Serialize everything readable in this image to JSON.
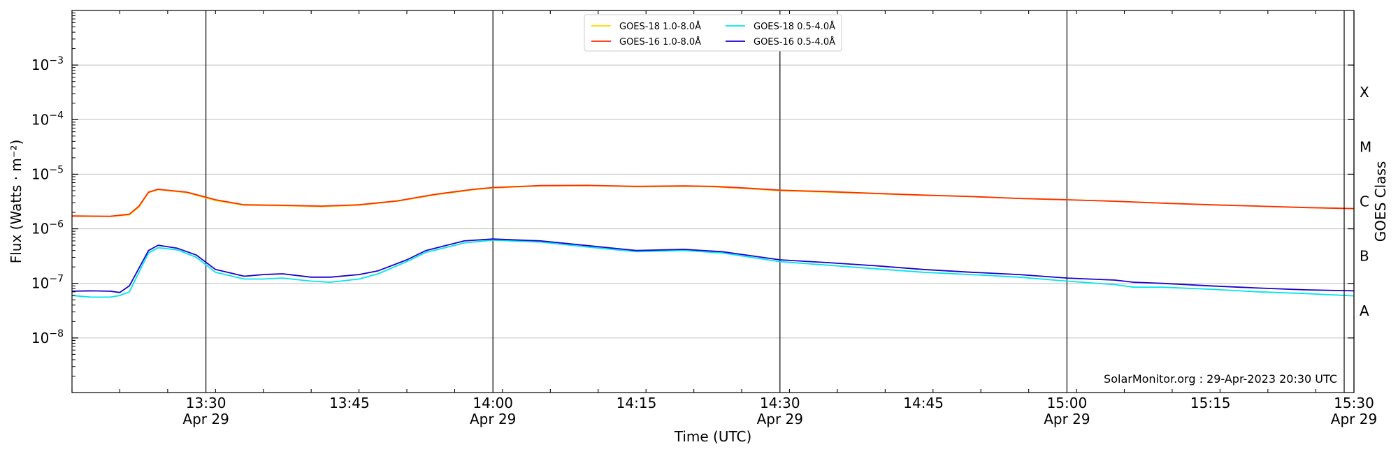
{
  "chart_data": {
    "type": "line",
    "xlabel": "Time (UTC)",
    "ylabel": "Flux (Watts · m⁻²)",
    "ylabel_right": "GOES Class",
    "y_scale": "log",
    "ylim": [
      1e-09,
      0.01
    ],
    "xlim": [
      "13:16",
      "15:30"
    ],
    "x_ticks": [
      {
        "time": "13:30",
        "label": "13:30",
        "date": "Apr 29"
      },
      {
        "time": "13:45",
        "label": "13:45",
        "date": ""
      },
      {
        "time": "14:00",
        "label": "14:00",
        "date": "Apr 29"
      },
      {
        "time": "14:15",
        "label": "14:15",
        "date": ""
      },
      {
        "time": "14:30",
        "label": "14:30",
        "date": "Apr 29"
      },
      {
        "time": "14:45",
        "label": "14:45",
        "date": ""
      },
      {
        "time": "15:00",
        "label": "15:00",
        "date": "Apr 29"
      },
      {
        "time": "15:15",
        "label": "15:15",
        "date": ""
      },
      {
        "time": "15:30",
        "label": "15:30",
        "date": "Apr 29"
      }
    ],
    "vertical_lines": [
      "13:30",
      "14:00",
      "14:30",
      "15:00",
      "15:30"
    ],
    "y_ticks": [
      {
        "value": 1e-08,
        "mantissa": "10",
        "exponent": "−8"
      },
      {
        "value": 1e-07,
        "mantissa": "10",
        "exponent": "−7"
      },
      {
        "value": 1e-06,
        "mantissa": "10",
        "exponent": "−6"
      },
      {
        "value": 1e-05,
        "mantissa": "10",
        "exponent": "−5"
      },
      {
        "value": 0.0001,
        "mantissa": "10",
        "exponent": "−4"
      },
      {
        "value": 0.001,
        "mantissa": "10",
        "exponent": "−3"
      }
    ],
    "goes_classes": [
      {
        "label": "A",
        "value": 3.16e-08
      },
      {
        "label": "B",
        "value": 3.16e-07
      },
      {
        "label": "C",
        "value": 3.16e-06
      },
      {
        "label": "M",
        "value": 3.16e-05
      },
      {
        "label": "X",
        "value": 0.000316
      }
    ],
    "grid": "horizontal",
    "legend_position": "top-center",
    "credit": "SolarMonitor.org : 29-Apr-2023 20:30 UTC",
    "series": [
      {
        "name": "GOES-18 1.0-8.0Å",
        "color": "#ffd700",
        "points": [
          [
            "13:16",
            1.7e-06
          ],
          [
            "13:20",
            1.68e-06
          ],
          [
            "13:22",
            1.8e-06
          ],
          [
            "13:23",
            2.5e-06
          ],
          [
            "13:24",
            4.6e-06
          ],
          [
            "13:25",
            5.2e-06
          ],
          [
            "13:28",
            4.6e-06
          ],
          [
            "13:30",
            3.7e-06
          ],
          [
            "13:31",
            3.3e-06
          ],
          [
            "13:34",
            2.7e-06
          ],
          [
            "13:38",
            2.65e-06
          ],
          [
            "13:42",
            2.55e-06
          ],
          [
            "13:46",
            2.7e-06
          ],
          [
            "13:50",
            3.2e-06
          ],
          [
            "13:54",
            4.2e-06
          ],
          [
            "13:58",
            5.2e-06
          ],
          [
            "14:00",
            5.6e-06
          ],
          [
            "14:05",
            6.1e-06
          ],
          [
            "14:10",
            6.15e-06
          ],
          [
            "14:15",
            5.9e-06
          ],
          [
            "14:20",
            6e-06
          ],
          [
            "14:23",
            5.9e-06
          ],
          [
            "14:27",
            5.4e-06
          ],
          [
            "14:30",
            5e-06
          ],
          [
            "14:35",
            4.7e-06
          ],
          [
            "14:40",
            4.4e-06
          ],
          [
            "14:45",
            4.1e-06
          ],
          [
            "14:50",
            3.9e-06
          ],
          [
            "14:55",
            3.6e-06
          ],
          [
            "15:00",
            3.4e-06
          ],
          [
            "15:05",
            3.2e-06
          ],
          [
            "15:10",
            2.95e-06
          ],
          [
            "15:15",
            2.75e-06
          ],
          [
            "15:20",
            2.6e-06
          ],
          [
            "15:25",
            2.45e-06
          ],
          [
            "15:30",
            2.35e-06
          ]
        ]
      },
      {
        "name": "GOES-18 0.5-4.0Å",
        "color": "#00e5ee",
        "points": [
          [
            "13:16",
            6e-08
          ],
          [
            "13:18",
            5.6e-08
          ],
          [
            "13:20",
            5.6e-08
          ],
          [
            "13:21",
            6e-08
          ],
          [
            "13:22",
            7e-08
          ],
          [
            "13:23",
            1.6e-07
          ],
          [
            "13:24",
            3.6e-07
          ],
          [
            "13:25",
            4.5e-07
          ],
          [
            "13:27",
            4.1e-07
          ],
          [
            "13:29",
            3e-07
          ],
          [
            "13:31",
            1.6e-07
          ],
          [
            "13:34",
            1.2e-07
          ],
          [
            "13:36",
            1.2e-07
          ],
          [
            "13:38",
            1.25e-07
          ],
          [
            "13:41",
            1.1e-07
          ],
          [
            "13:43",
            1.05e-07
          ],
          [
            "13:46",
            1.2e-07
          ],
          [
            "13:48",
            1.5e-07
          ],
          [
            "13:51",
            2.5e-07
          ],
          [
            "13:53",
            3.7e-07
          ],
          [
            "13:57",
            5.5e-07
          ],
          [
            "14:00",
            6.2e-07
          ],
          [
            "14:05",
            5.7e-07
          ],
          [
            "14:10",
            4.6e-07
          ],
          [
            "14:15",
            3.8e-07
          ],
          [
            "14:20",
            4e-07
          ],
          [
            "14:24",
            3.6e-07
          ],
          [
            "14:30",
            2.5e-07
          ],
          [
            "14:35",
            2.15e-07
          ],
          [
            "14:40",
            1.85e-07
          ],
          [
            "14:45",
            1.6e-07
          ],
          [
            "14:50",
            1.45e-07
          ],
          [
            "14:55",
            1.3e-07
          ],
          [
            "15:00",
            1.1e-07
          ],
          [
            "15:05",
            9.5e-08
          ],
          [
            "15:07",
            8.5e-08
          ],
          [
            "15:10",
            8.5e-08
          ],
          [
            "15:15",
            7.8e-08
          ],
          [
            "15:20",
            7e-08
          ],
          [
            "15:25",
            6.5e-08
          ],
          [
            "15:30",
            5.9e-08
          ]
        ]
      },
      {
        "name": "GOES-16 1.0-8.0Å",
        "color": "#ff2a00",
        "points": [
          [
            "13:16",
            1.72e-06
          ],
          [
            "13:20",
            1.7e-06
          ],
          [
            "13:22",
            1.85e-06
          ],
          [
            "13:23",
            2.6e-06
          ],
          [
            "13:24",
            4.7e-06
          ],
          [
            "13:25",
            5.3e-06
          ],
          [
            "13:28",
            4.7e-06
          ],
          [
            "13:30",
            3.8e-06
          ],
          [
            "13:31",
            3.4e-06
          ],
          [
            "13:34",
            2.75e-06
          ],
          [
            "13:38",
            2.7e-06
          ],
          [
            "13:42",
            2.6e-06
          ],
          [
            "13:46",
            2.75e-06
          ],
          [
            "13:50",
            3.25e-06
          ],
          [
            "13:54",
            4.3e-06
          ],
          [
            "13:58",
            5.3e-06
          ],
          [
            "14:00",
            5.7e-06
          ],
          [
            "14:05",
            6.2e-06
          ],
          [
            "14:10",
            6.25e-06
          ],
          [
            "14:15",
            6e-06
          ],
          [
            "14:20",
            6.1e-06
          ],
          [
            "14:23",
            6e-06
          ],
          [
            "14:27",
            5.5e-06
          ],
          [
            "14:30",
            5.1e-06
          ],
          [
            "14:35",
            4.8e-06
          ],
          [
            "14:40",
            4.45e-06
          ],
          [
            "14:45",
            4.15e-06
          ],
          [
            "14:50",
            3.9e-06
          ],
          [
            "14:55",
            3.6e-06
          ],
          [
            "15:00",
            3.4e-06
          ],
          [
            "15:05",
            3.2e-06
          ],
          [
            "15:10",
            2.95e-06
          ],
          [
            "15:15",
            2.75e-06
          ],
          [
            "15:20",
            2.6e-06
          ],
          [
            "15:25",
            2.45e-06
          ],
          [
            "15:30",
            2.35e-06
          ]
        ]
      },
      {
        "name": "GOES-16 0.5-4.0Å",
        "color": "#1a00cc",
        "points": [
          [
            "13:16",
            7.2e-08
          ],
          [
            "13:18",
            7.3e-08
          ],
          [
            "13:20",
            7.2e-08
          ],
          [
            "13:21",
            6.8e-08
          ],
          [
            "13:22",
            9e-08
          ],
          [
            "13:23",
            1.9e-07
          ],
          [
            "13:24",
            4e-07
          ],
          [
            "13:25",
            5e-07
          ],
          [
            "13:27",
            4.4e-07
          ],
          [
            "13:29",
            3.3e-07
          ],
          [
            "13:31",
            1.8e-07
          ],
          [
            "13:34",
            1.35e-07
          ],
          [
            "13:36",
            1.45e-07
          ],
          [
            "13:38",
            1.5e-07
          ],
          [
            "13:41",
            1.3e-07
          ],
          [
            "13:43",
            1.3e-07
          ],
          [
            "13:46",
            1.45e-07
          ],
          [
            "13:48",
            1.7e-07
          ],
          [
            "13:51",
            2.7e-07
          ],
          [
            "13:53",
            4e-07
          ],
          [
            "13:57",
            6e-07
          ],
          [
            "14:00",
            6.5e-07
          ],
          [
            "14:05",
            6e-07
          ],
          [
            "14:10",
            4.9e-07
          ],
          [
            "14:15",
            4e-07
          ],
          [
            "14:20",
            4.2e-07
          ],
          [
            "14:24",
            3.8e-07
          ],
          [
            "14:30",
            2.7e-07
          ],
          [
            "14:35",
            2.4e-07
          ],
          [
            "14:40",
            2.1e-07
          ],
          [
            "14:45",
            1.8e-07
          ],
          [
            "14:50",
            1.6e-07
          ],
          [
            "14:55",
            1.45e-07
          ],
          [
            "15:00",
            1.25e-07
          ],
          [
            "15:05",
            1.15e-07
          ],
          [
            "15:07",
            1.05e-07
          ],
          [
            "15:10",
            1e-07
          ],
          [
            "15:15",
            9e-08
          ],
          [
            "15:20",
            8.2e-08
          ],
          [
            "15:25",
            7.6e-08
          ],
          [
            "15:30",
            7.3e-08
          ]
        ]
      }
    ]
  }
}
